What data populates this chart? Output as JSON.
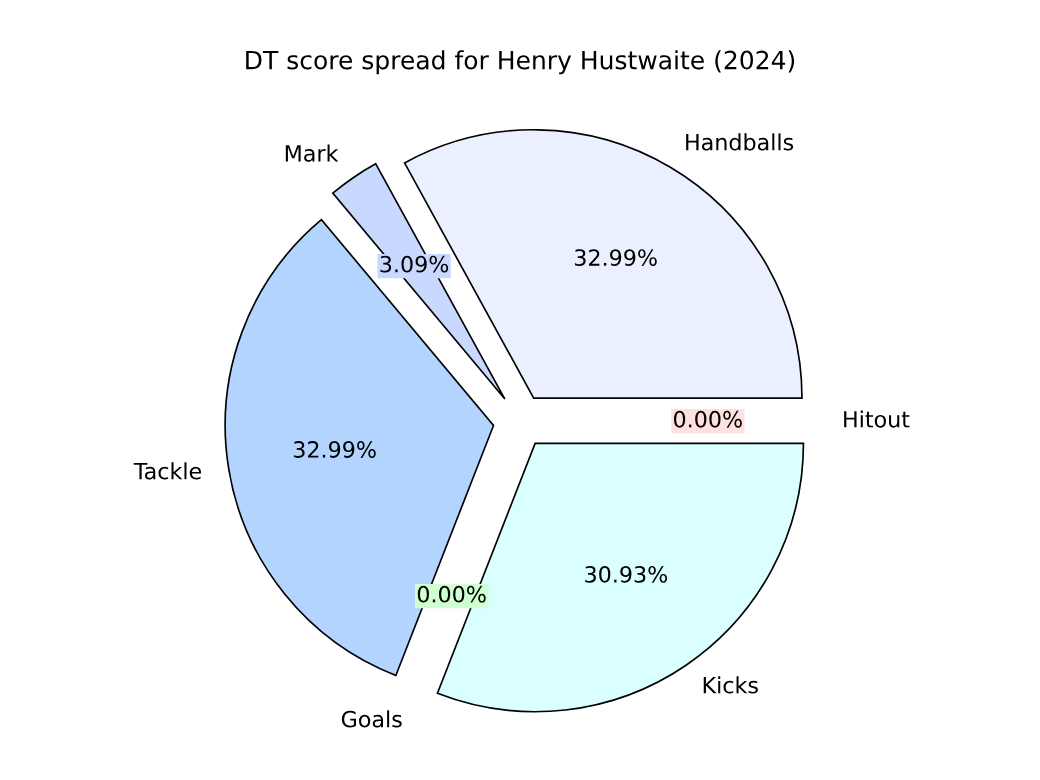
{
  "chart_data": {
    "type": "pie",
    "title": "DT score spread for Henry Hustwaite (2024)",
    "categories": [
      "Hitout",
      "Handballs",
      "Mark",
      "Tackle",
      "Goals",
      "Kicks"
    ],
    "values": [
      0,
      32.99,
      3.09,
      32.99,
      0,
      30.93
    ],
    "value_labels": [
      "0.00%",
      "32.99%",
      "3.09%",
      "32.99%",
      "0.00%",
      "30.93%"
    ],
    "colors": [
      "#ffe0e0",
      "#eaf0ff",
      "#c8d8ff",
      "#b3d4ff",
      "#d0ffd0",
      "#d9ffff"
    ],
    "legend": false
  }
}
